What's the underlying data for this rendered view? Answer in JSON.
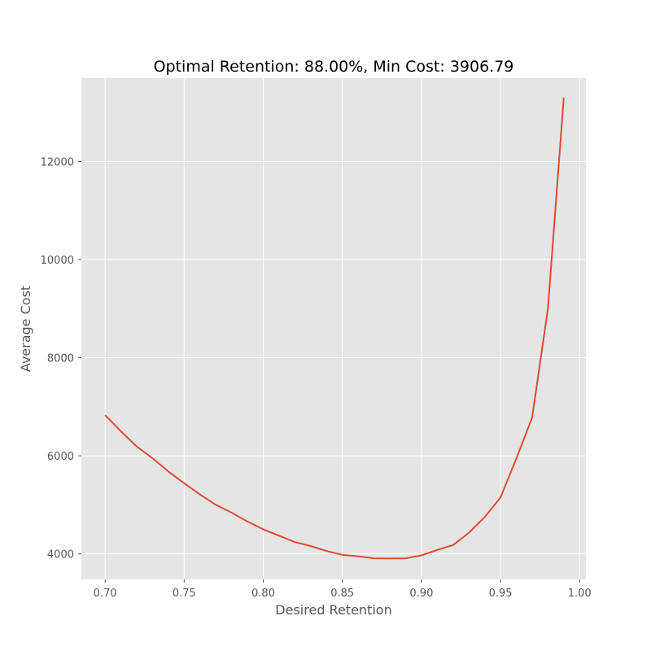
{
  "chart_data": {
    "type": "line",
    "title": "Optimal Retention: 88.00%, Min Cost: 3906.79",
    "xlabel": "Desired Retention",
    "ylabel": "Average Cost",
    "xlim": [
      0.685,
      1.004
    ],
    "ylim": [
      3480,
      13700
    ],
    "x_ticks": [
      0.7,
      0.75,
      0.8,
      0.85,
      0.9,
      0.95,
      1.0
    ],
    "x_tick_labels": [
      "0.70",
      "0.75",
      "0.80",
      "0.85",
      "0.90",
      "0.95",
      "1.00"
    ],
    "y_ticks": [
      4000,
      6000,
      8000,
      10000,
      12000
    ],
    "y_tick_labels": [
      "4000",
      "6000",
      "8000",
      "10000",
      "12000"
    ],
    "grid": true,
    "background": "#e5e5e5",
    "grid_color": "#ffffff",
    "series": [
      {
        "color": "#e24a33",
        "x": [
          0.7,
          0.71,
          0.72,
          0.73,
          0.74,
          0.75,
          0.76,
          0.77,
          0.78,
          0.79,
          0.8,
          0.81,
          0.82,
          0.83,
          0.84,
          0.85,
          0.86,
          0.87,
          0.88,
          0.89,
          0.9,
          0.91,
          0.92,
          0.93,
          0.94,
          0.95,
          0.96,
          0.97,
          0.98,
          0.99
        ],
        "y": [
          6830,
          6500,
          6190,
          5950,
          5680,
          5440,
          5210,
          5000,
          4840,
          4660,
          4500,
          4370,
          4240,
          4160,
          4060,
          3980,
          3950,
          3910,
          3907,
          3910,
          3970,
          4080,
          4180,
          4430,
          4750,
          5150,
          5940,
          6780,
          9000,
          13300
        ]
      }
    ]
  }
}
